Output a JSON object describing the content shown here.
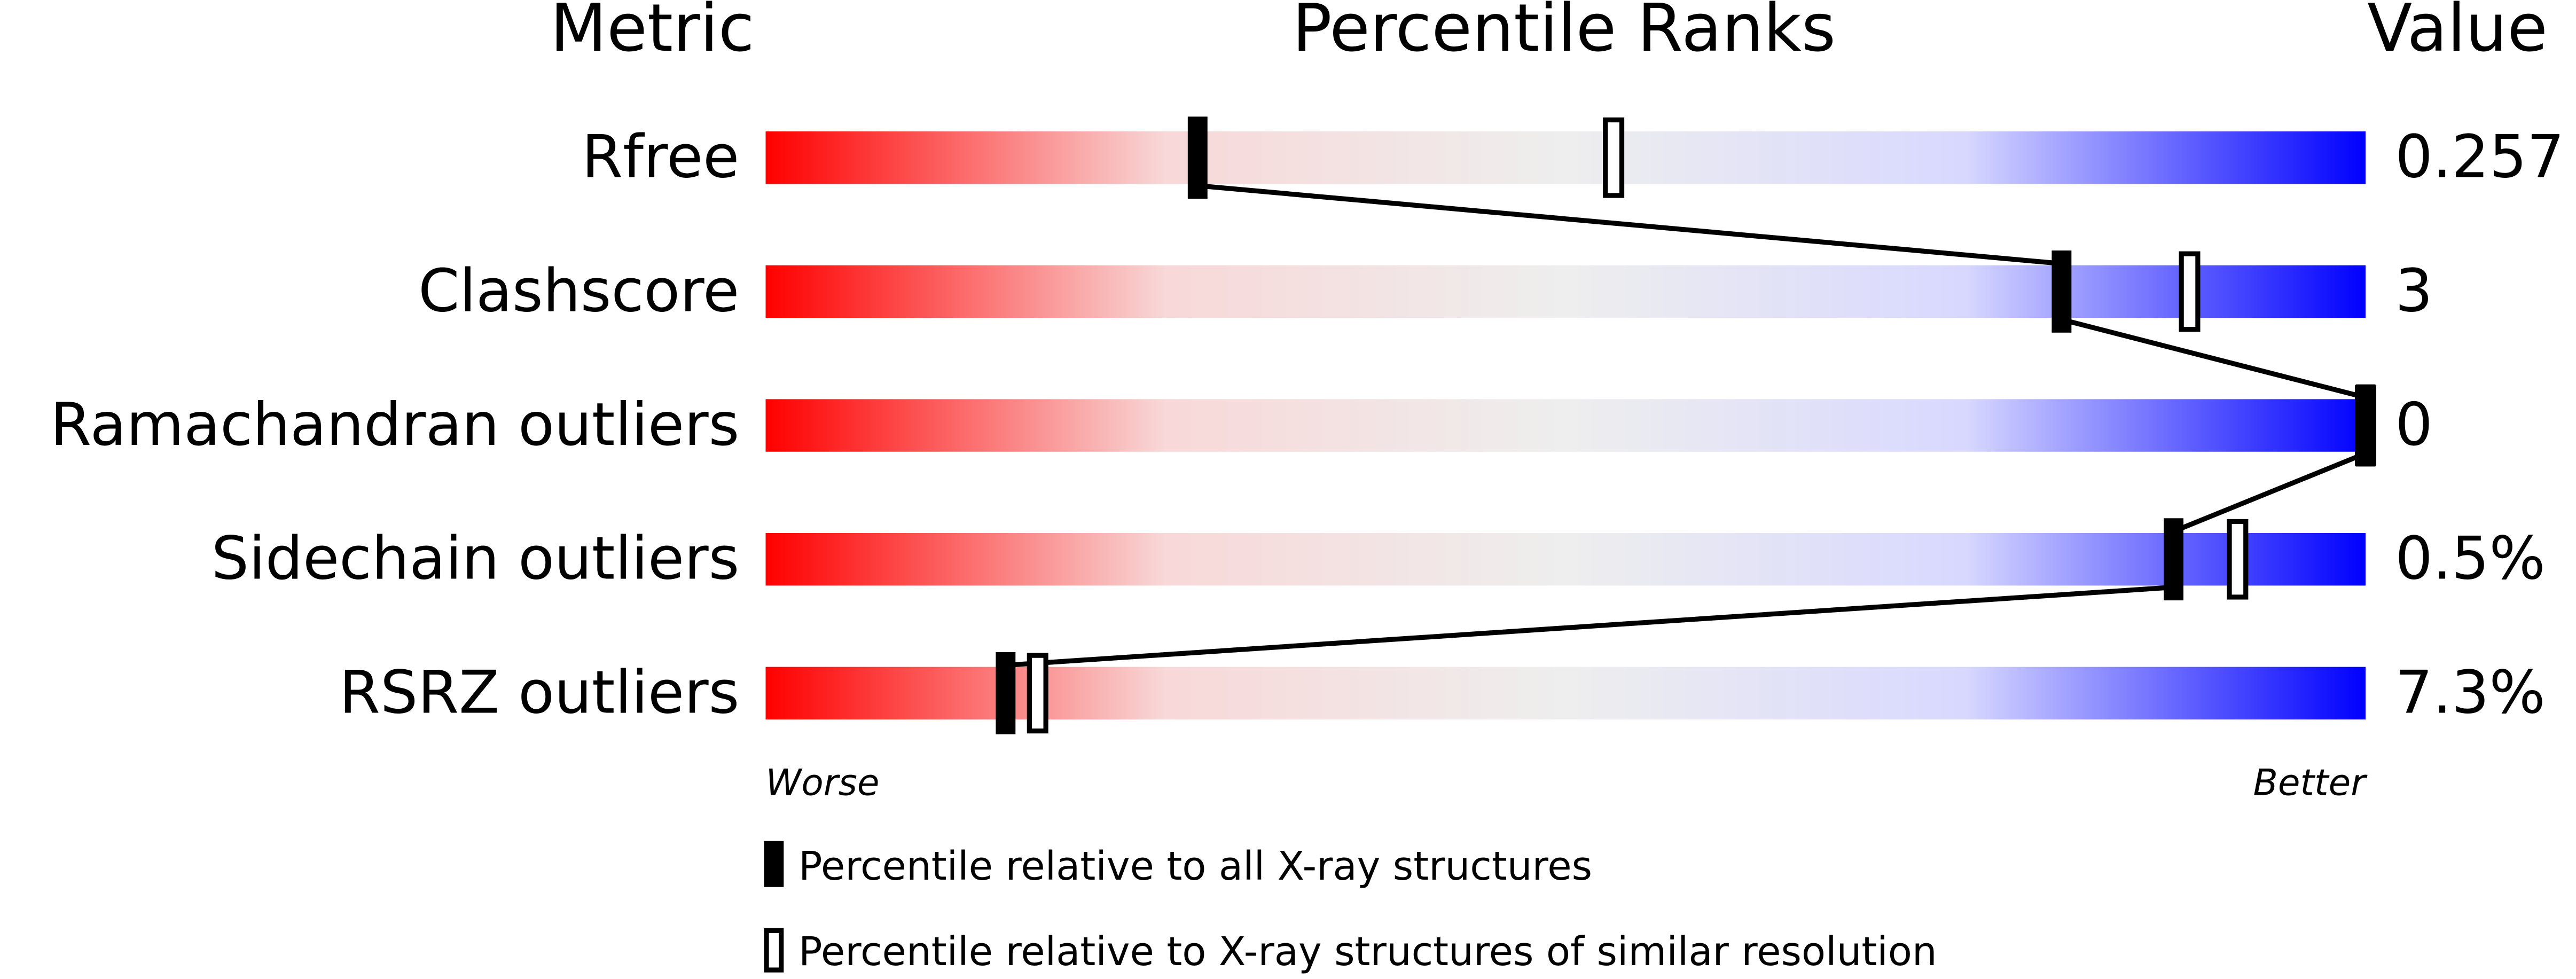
{
  "chart_data": {
    "type": "percentile-slider",
    "headers": [
      "Metric",
      "Percentile Ranks",
      "Value"
    ],
    "categories": [
      "Rfree",
      "Clashscore",
      "Ramachandran outliers",
      "Sidechain outliers",
      "RSRZ outliers"
    ],
    "metric_values": [
      "0.257",
      "3",
      "0",
      "0.5%",
      "7.3%"
    ],
    "series": [
      {
        "name": "Percentile relative to all X-ray structures",
        "color": "#000000",
        "values": [
          27,
          81,
          100,
          88,
          15
        ]
      },
      {
        "name": "Percentile relative to X-ray structures of similar resolution",
        "color": "#000000",
        "values": [
          53,
          89,
          100,
          92,
          17
        ]
      }
    ],
    "xlim": [
      0,
      100
    ],
    "scale_labels": [
      "Worse",
      "Better"
    ],
    "gradient": [
      "#ff0000",
      "#f8d8d8",
      "#eeeeee",
      "#d8d8ff",
      "#0000ff"
    ]
  }
}
